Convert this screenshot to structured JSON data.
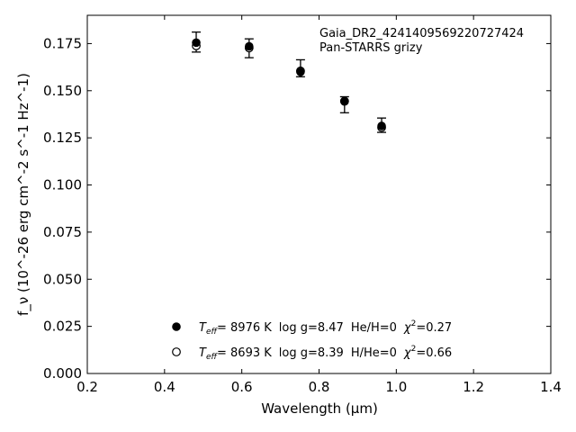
{
  "chart_data": {
    "type": "scatter",
    "title": "",
    "annotation": {
      "line1": "Gaia_DR2_4241409569220727424",
      "line2": "Pan-STARRS grizy"
    },
    "xlabel": "Wavelength (μm)",
    "ylabel": "f_ν (10^-26 erg cm^-2 s^-1 Hz^-1)",
    "xlim": [
      0.2,
      1.4
    ],
    "ylim": [
      0.0,
      0.19
    ],
    "xticks": [
      0.2,
      0.4,
      0.6,
      0.8,
      1.0,
      1.2,
      1.4
    ],
    "xtick_labels": [
      "0.2",
      "0.4",
      "0.6",
      "0.8",
      "1.0",
      "1.2",
      "1.4"
    ],
    "yticks": [
      0.0,
      0.025,
      0.05,
      0.075,
      0.1,
      0.125,
      0.15,
      0.175
    ],
    "ytick_labels": [
      "0.000",
      "0.025",
      "0.050",
      "0.075",
      "0.100",
      "0.125",
      "0.150",
      "0.175"
    ],
    "grid": false,
    "observed": {
      "x": [
        0.482,
        0.619,
        0.752,
        0.866,
        0.962
      ],
      "y": [
        0.1758,
        0.1727,
        0.1617,
        0.1425,
        0.1315
      ],
      "yerr_low": [
        0.0053,
        0.0052,
        0.0043,
        0.0042,
        0.0036
      ],
      "yerr_high": [
        0.0053,
        0.0048,
        0.0047,
        0.0043,
        0.004
      ]
    },
    "series": [
      {
        "marker": "filled-circle",
        "x": [
          0.482,
          0.619,
          0.752,
          0.866,
          0.962
        ],
        "y": [
          0.1755,
          0.1735,
          0.16,
          0.1443,
          0.1313
        ]
      },
      {
        "marker": "open-circle",
        "x": [
          0.482,
          0.619,
          0.752,
          0.866,
          0.962
        ],
        "y": [
          0.1738,
          0.1727,
          0.1605,
          0.1445,
          0.1305
        ]
      }
    ],
    "legend": {
      "placement": "lower-center",
      "entries": [
        {
          "marker": "filled-circle",
          "teff_label": "T",
          "teff_sub": "eff",
          "teff_value": "=  8976 K",
          "logg": "log g=8.47",
          "composition": "He/H=0",
          "chi_label": "χ",
          "chi_sup": "2",
          "chi_value": "=0.27"
        },
        {
          "marker": "open-circle",
          "teff_label": "T",
          "teff_sub": "eff",
          "teff_value": "=  8693 K",
          "logg": "log g=8.39",
          "composition": "H/He=0",
          "chi_label": "χ",
          "chi_sup": "2",
          "chi_value": "=0.66"
        }
      ]
    },
    "colors": {
      "axes": "#000000",
      "markers": "#000000",
      "background": "#ffffff"
    }
  }
}
